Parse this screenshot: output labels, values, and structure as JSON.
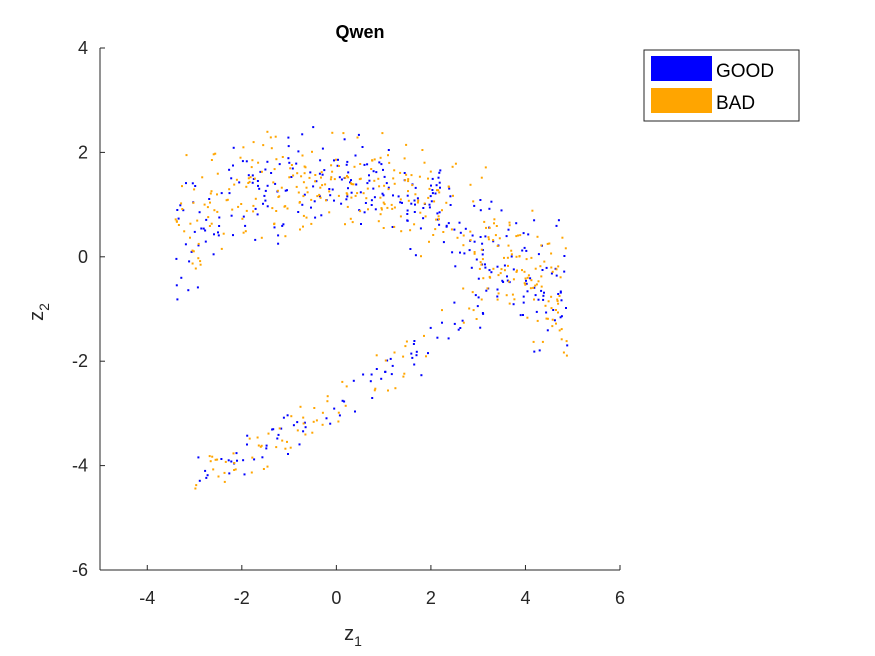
{
  "chart_data": {
    "type": "scatter",
    "title": "Qwen",
    "xlabel": "z",
    "xlabel_sub": "1",
    "ylabel": "z",
    "ylabel_sub": "2",
    "xlim": [
      -5,
      6
    ],
    "ylim": [
      -6,
      4
    ],
    "xticks": [
      -4,
      -2,
      0,
      2,
      4,
      6
    ],
    "yticks": [
      -6,
      -4,
      -2,
      0,
      2,
      4
    ],
    "grid": false,
    "legend_position": "top-right",
    "series": [
      {
        "name": "GOOD",
        "color": "#0000ff",
        "clusters": [
          {
            "shape": "upper-band",
            "n": 300
          },
          {
            "shape": "lower-band",
            "n": 80
          }
        ]
      },
      {
        "name": "BAD",
        "color": "#ffa500",
        "clusters": [
          {
            "shape": "upper-band",
            "n": 360
          },
          {
            "shape": "lower-band",
            "n": 75
          }
        ]
      }
    ]
  }
}
